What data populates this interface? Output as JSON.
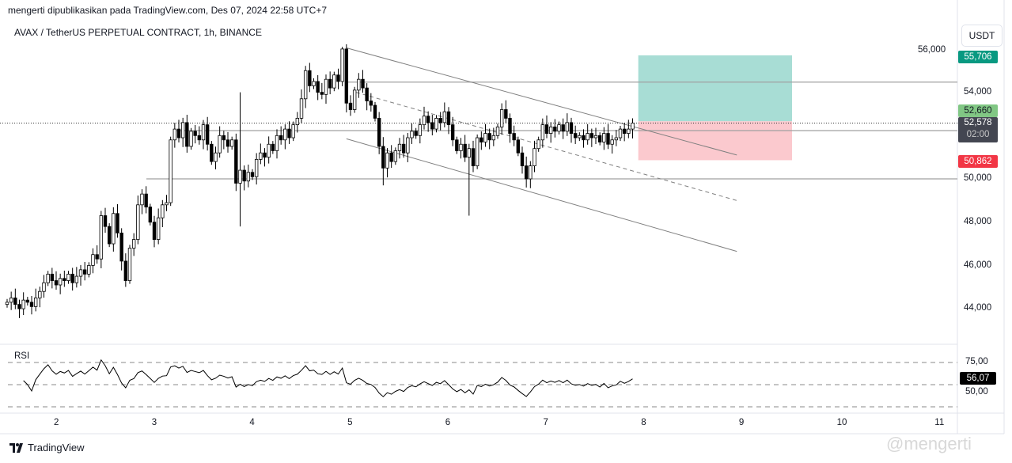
{
  "header": {
    "published": "mengerti dipublikasikan pada TradingView.com, Des 07, 2024 22:58 UTC+7",
    "symbol": "AVAX / TetherUS PERPETUAL CONTRACT, 1h, BINANCE",
    "currency_button": "USDT"
  },
  "price_axis": {
    "ticks": [
      "44,000",
      "46,000",
      "48,000",
      "50,000",
      "54,000"
    ],
    "hidden_tick": "56,000",
    "labels": {
      "target": "55,706",
      "entry": "52,660",
      "last": "52,578",
      "countdown": "02:00",
      "stop": "50,862"
    }
  },
  "colors": {
    "target": "#089981",
    "entry": "#81c784",
    "last": "#434651",
    "stop": "#f23645",
    "profit_zone": "#a8ddd5",
    "loss_zone": "#fbc9ce"
  },
  "rsi": {
    "label": "RSI",
    "ticks": [
      "75,00",
      "50,00"
    ],
    "value": "56,07",
    "levels": [
      75,
      50,
      25
    ]
  },
  "time_axis": {
    "ticks": [
      "2",
      "3",
      "4",
      "5",
      "6",
      "7",
      "8",
      "9",
      "10",
      "11"
    ]
  },
  "footer": {
    "brand": "TradingView",
    "watermark": "@mengerti"
  },
  "chart_data": {
    "type": "candlestick",
    "interval": "1h",
    "first_bar": "Dec 1 12:00",
    "price_range": [
      43500,
      56500
    ],
    "closes": [
      44300,
      44500,
      44200,
      44000,
      44400,
      44300,
      44100,
      44500,
      44800,
      45200,
      45600,
      45300,
      45100,
      45400,
      45300,
      45600,
      45200,
      45500,
      45800,
      45600,
      46000,
      46500,
      46300,
      48300,
      47800,
      47000,
      48400,
      47500,
      46200,
      45300,
      46800,
      47200,
      48800,
      49300,
      48700,
      48000,
      47200,
      48200,
      48800,
      48900,
      51800,
      52300,
      51900,
      52600,
      51500,
      52200,
      52000,
      51800,
      52500,
      51600,
      50800,
      51200,
      52000,
      51800,
      51500,
      51800,
      49800,
      50400,
      49900,
      50300,
      50100,
      50900,
      51200,
      51000,
      51600,
      51300,
      52000,
      51800,
      52300,
      51900,
      52500,
      52800,
      53700,
      55000,
      54300,
      54500,
      54000,
      53900,
      54600,
      54200,
      54800,
      54500,
      56000,
      53500,
      53200,
      54100,
      54600,
      54200,
      53600,
      53400,
      52800,
      51500,
      50500,
      51200,
      50800,
      51300,
      51600,
      51200,
      51900,
      52200,
      52000,
      52500,
      52900,
      52600,
      52300,
      52800,
      52600,
      53100,
      52500,
      51800,
      51300,
      51600,
      51000,
      51400,
      50600,
      51900,
      51700,
      52100,
      51800,
      52000,
      52400,
      53200,
      52800,
      52100,
      51800,
      51200,
      50600,
      50000,
      50600,
      51400,
      51800,
      52500,
      52100,
      52400,
      52200,
      52500,
      52200,
      52600,
      52100,
      51900,
      52000,
      51800,
      52100,
      51900,
      52000,
      51700,
      52100,
      51600,
      51800,
      51900,
      52300,
      52100,
      52300,
      52578
    ],
    "notable_wicks": [
      {
        "bar": 57,
        "high": 54000,
        "low": 47800
      },
      {
        "bar": 113,
        "low": 48300
      },
      {
        "bar": 82,
        "high": 56100
      },
      {
        "bar": 92,
        "low": 49700
      },
      {
        "bar": 127,
        "low": 49600
      }
    ],
    "horizontal_lines": [
      54470,
      52230,
      50000
    ],
    "channel": {
      "start": "Dec 4 23:00",
      "end": "Dec 8 22:30",
      "upper": [
        56050,
        51100
      ],
      "middle": [
        54000,
        49000
      ],
      "lower": [
        51850,
        46650
      ]
    },
    "long_position": {
      "entry": 52660,
      "target": 55706,
      "stop": 50862,
      "start": "Dec 7 22:00",
      "end": "Dec 9 12:00"
    }
  }
}
